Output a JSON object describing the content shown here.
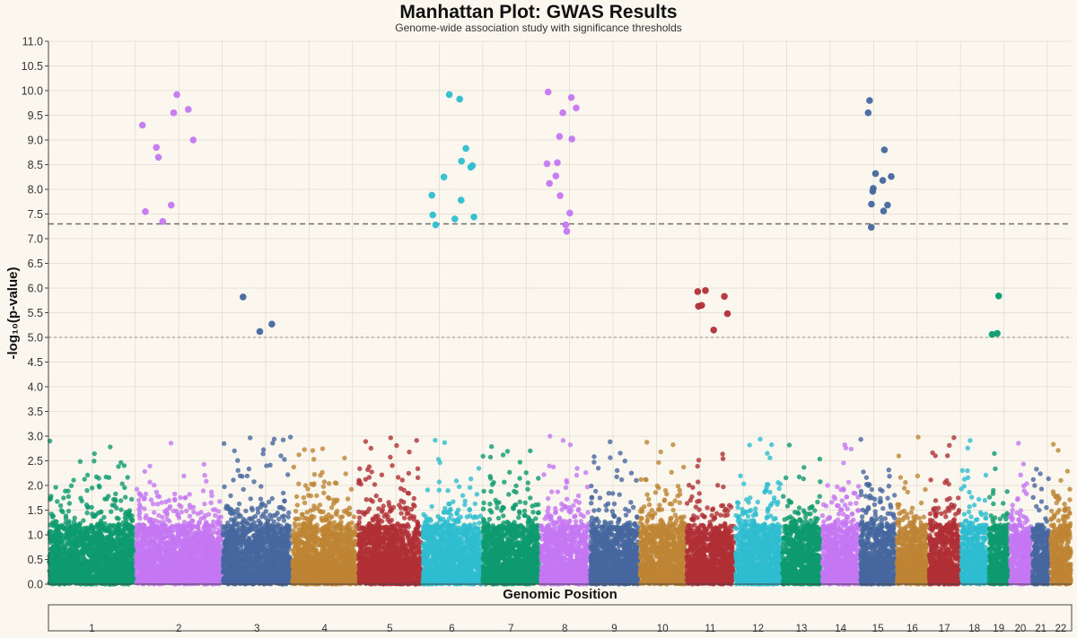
{
  "chart_data": {
    "type": "scatter",
    "title": "Manhattan Plot: GWAS Results",
    "subtitle": "Genome-wide association study with significance thresholds",
    "xlabel": "Genomic Position",
    "ylabel": "-log₁₀(p-value)",
    "ylim": [
      0,
      11
    ],
    "yticks": [
      "0.0",
      "0.5",
      "1.0",
      "1.5",
      "2.0",
      "2.5",
      "3.0",
      "3.5",
      "4.0",
      "4.5",
      "5.0",
      "5.5",
      "6.0",
      "6.5",
      "7.0",
      "7.5",
      "8.0",
      "8.5",
      "9.0",
      "9.5",
      "10.0",
      "10.5",
      "11.0"
    ],
    "grid": true,
    "thresholds": [
      {
        "value": 7.3,
        "style": "dashed",
        "meaning": "genome-wide significance"
      },
      {
        "value": 5.0,
        "style": "dotted",
        "meaning": "suggestive"
      }
    ],
    "colors": [
      "#0c9a6e",
      "#c477f2",
      "#46679f",
      "#be8435",
      "#b03036",
      "#2ebdcf"
    ],
    "chromosomes": [
      {
        "label": "1",
        "start": 0,
        "end": 1.0
      },
      {
        "label": "2",
        "start": 1.0,
        "end": 2.0
      },
      {
        "label": "3",
        "start": 2.0,
        "end": 2.8
      },
      {
        "label": "4",
        "start": 2.8,
        "end": 3.56
      },
      {
        "label": "5",
        "start": 3.56,
        "end": 4.3
      },
      {
        "label": "6",
        "start": 4.3,
        "end": 4.99
      },
      {
        "label": "7",
        "start": 4.99,
        "end": 5.66
      },
      {
        "label": "8",
        "start": 5.66,
        "end": 6.23
      },
      {
        "label": "9",
        "start": 6.23,
        "end": 6.8
      },
      {
        "label": "10",
        "start": 6.8,
        "end": 7.34
      },
      {
        "label": "11",
        "start": 7.34,
        "end": 7.9
      },
      {
        "label": "12",
        "start": 7.9,
        "end": 8.44
      },
      {
        "label": "13",
        "start": 8.44,
        "end": 8.9
      },
      {
        "label": "14",
        "start": 8.9,
        "end": 9.34
      },
      {
        "label": "15",
        "start": 9.34,
        "end": 9.76
      },
      {
        "label": "16",
        "start": 9.76,
        "end": 10.13
      },
      {
        "label": "17",
        "start": 10.13,
        "end": 10.5
      },
      {
        "label": "18",
        "start": 10.5,
        "end": 10.82
      },
      {
        "label": "19",
        "start": 10.82,
        "end": 11.06
      },
      {
        "label": "20",
        "start": 11.06,
        "end": 11.32
      },
      {
        "label": "21",
        "start": 11.32,
        "end": 11.53
      },
      {
        "label": "22",
        "start": 11.53,
        "end": 11.78
      }
    ],
    "background_points": {
      "description_range": "dense cloud of many points per chromosome",
      "y_range": [
        0,
        3.0
      ]
    },
    "significant_points": [
      {
        "chr": "2",
        "y": 9.0
      },
      {
        "chr": "2",
        "y": 8.85
      },
      {
        "chr": "2",
        "y": 8.65
      },
      {
        "chr": "2",
        "y": 9.55
      },
      {
        "chr": "2",
        "y": 7.55
      },
      {
        "chr": "2",
        "y": 9.62
      },
      {
        "chr": "2",
        "y": 9.92
      },
      {
        "chr": "2",
        "y": 7.68
      },
      {
        "chr": "2",
        "y": 9.3
      },
      {
        "chr": "2",
        "y": 7.35
      },
      {
        "chr": "3",
        "y": 5.82
      },
      {
        "chr": "3",
        "y": 5.27
      },
      {
        "chr": "3",
        "y": 5.12
      },
      {
        "chr": "6",
        "y": 8.45
      },
      {
        "chr": "6",
        "y": 8.57
      },
      {
        "chr": "6",
        "y": 9.83
      },
      {
        "chr": "6",
        "y": 9.92
      },
      {
        "chr": "6",
        "y": 7.48
      },
      {
        "chr": "6",
        "y": 8.48
      },
      {
        "chr": "6",
        "y": 7.44
      },
      {
        "chr": "6",
        "y": 8.25
      },
      {
        "chr": "6",
        "y": 7.78
      },
      {
        "chr": "6",
        "y": 7.88
      },
      {
        "chr": "6",
        "y": 7.4
      },
      {
        "chr": "6",
        "y": 7.28
      },
      {
        "chr": "6",
        "y": 8.83
      },
      {
        "chr": "8",
        "y": 8.12
      },
      {
        "chr": "8",
        "y": 9.65
      },
      {
        "chr": "8",
        "y": 7.87
      },
      {
        "chr": "8",
        "y": 8.27
      },
      {
        "chr": "8",
        "y": 9.07
      },
      {
        "chr": "8",
        "y": 9.86
      },
      {
        "chr": "8",
        "y": 7.15
      },
      {
        "chr": "8",
        "y": 7.28
      },
      {
        "chr": "8",
        "y": 7.52
      },
      {
        "chr": "8",
        "y": 9.02
      },
      {
        "chr": "8",
        "y": 9.55
      },
      {
        "chr": "8",
        "y": 8.52
      },
      {
        "chr": "8",
        "y": 9.97
      },
      {
        "chr": "8",
        "y": 8.54
      },
      {
        "chr": "11",
        "y": 5.83
      },
      {
        "chr": "11",
        "y": 5.65
      },
      {
        "chr": "11",
        "y": 5.48
      },
      {
        "chr": "11",
        "y": 5.93
      },
      {
        "chr": "11",
        "y": 5.63
      },
      {
        "chr": "11",
        "y": 5.95
      },
      {
        "chr": "11",
        "y": 5.15
      },
      {
        "chr": "15",
        "y": 7.68
      },
      {
        "chr": "15",
        "y": 8.02
      },
      {
        "chr": "15",
        "y": 9.8
      },
      {
        "chr": "15",
        "y": 7.96
      },
      {
        "chr": "15",
        "y": 9.55
      },
      {
        "chr": "15",
        "y": 8.8
      },
      {
        "chr": "15",
        "y": 7.7
      },
      {
        "chr": "15",
        "y": 8.32
      },
      {
        "chr": "15",
        "y": 8.26
      },
      {
        "chr": "15",
        "y": 8.18
      },
      {
        "chr": "15",
        "y": 7.23
      },
      {
        "chr": "15",
        "y": 7.56
      },
      {
        "chr": "19",
        "y": 5.08
      },
      {
        "chr": "19",
        "y": 5.06
      },
      {
        "chr": "19",
        "y": 5.84
      }
    ]
  }
}
